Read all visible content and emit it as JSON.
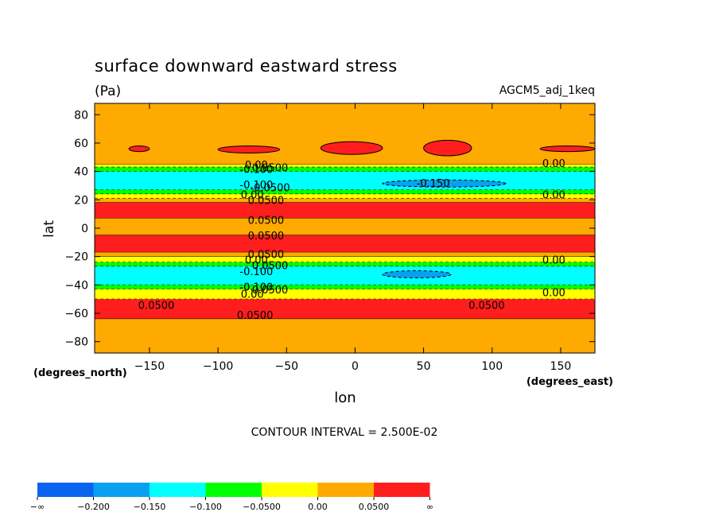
{
  "chart_data": {
    "type": "heatmap",
    "title": "surface downward eastward stress",
    "units": "(Pa)",
    "dataset": "AGCM5_adj_1keq",
    "xlabel": "lon",
    "ylabel": "lat",
    "x_units": "(degrees_east)",
    "y_units": "(degrees_north)",
    "xlim": [
      -190,
      175
    ],
    "ylim": [
      -88,
      88
    ],
    "x_ticks": [
      {
        "value": -150,
        "label": "−150"
      },
      {
        "value": -100,
        "label": "−100"
      },
      {
        "value": -50,
        "label": "−50"
      },
      {
        "value": 0,
        "label": "0"
      },
      {
        "value": 50,
        "label": "50"
      },
      {
        "value": 100,
        "label": "100"
      },
      {
        "value": 150,
        "label": "150"
      }
    ],
    "y_ticks": [
      {
        "value": 80,
        "label": "80"
      },
      {
        "value": 60,
        "label": "60"
      },
      {
        "value": 40,
        "label": "40"
      },
      {
        "value": 20,
        "label": "20"
      },
      {
        "value": 0,
        "label": "0"
      },
      {
        "value": -20,
        "label": "−20"
      },
      {
        "value": -40,
        "label": "−40"
      },
      {
        "value": -60,
        "label": "−60"
      },
      {
        "value": -80,
        "label": "−80"
      }
    ],
    "contour_interval_text": "CONTOUR INTERVAL = 2.500E-02",
    "bands": [
      {
        "lat_from": 88,
        "lat_to": 45,
        "value": 0.02
      },
      {
        "lat_from": 45,
        "lat_to": 43,
        "value": -0.02
      },
      {
        "lat_from": 43,
        "lat_to": 40,
        "value": -0.07
      },
      {
        "lat_from": 40,
        "lat_to": 27,
        "value": -0.12
      },
      {
        "lat_from": 27,
        "lat_to": 24,
        "value": -0.07
      },
      {
        "lat_from": 24,
        "lat_to": 21,
        "value": -0.02
      },
      {
        "lat_from": 21,
        "lat_to": 18,
        "value": 0.02
      },
      {
        "lat_from": 18,
        "lat_to": 7,
        "value": 0.06
      },
      {
        "lat_from": 7,
        "lat_to": -5,
        "value": 0.02
      },
      {
        "lat_from": -5,
        "lat_to": -17,
        "value": 0.06
      },
      {
        "lat_from": -17,
        "lat_to": -20,
        "value": 0.02
      },
      {
        "lat_from": -20,
        "lat_to": -24,
        "value": -0.02
      },
      {
        "lat_from": -24,
        "lat_to": -27,
        "value": -0.07
      },
      {
        "lat_from": -27,
        "lat_to": -40,
        "value": -0.12
      },
      {
        "lat_from": -40,
        "lat_to": -43,
        "value": -0.07
      },
      {
        "lat_from": -43,
        "lat_to": -50,
        "value": -0.02
      },
      {
        "lat_from": -50,
        "lat_to": -64,
        "value": 0.06
      },
      {
        "lat_from": -64,
        "lat_to": -88,
        "value": 0.02
      }
    ],
    "patches": [
      {
        "lon_from": -165,
        "lon_to": -150,
        "lat_from": 58,
        "lat_to": 54,
        "value": 0.06
      },
      {
        "lon_from": -100,
        "lon_to": -55,
        "lat_from": 58,
        "lat_to": 53,
        "value": 0.06
      },
      {
        "lon_from": -25,
        "lon_to": 20,
        "lat_from": 61,
        "lat_to": 52,
        "value": 0.06
      },
      {
        "lon_from": 50,
        "lon_to": 85,
        "lat_from": 62,
        "lat_to": 51,
        "value": 0.06
      },
      {
        "lon_from": 135,
        "lon_to": 175,
        "lat_from": 58,
        "lat_to": 54,
        "value": 0.06
      },
      {
        "lon_from": 20,
        "lon_to": 110,
        "lat_from": 34,
        "lat_to": 29,
        "value": -0.16
      },
      {
        "lon_from": 20,
        "lon_to": 70,
        "lat_from": -30,
        "lat_to": -35,
        "value": -0.16
      }
    ],
    "contour_labels": [
      {
        "lon": -72,
        "lat": 44,
        "label": "0.00"
      },
      {
        "lon": -72,
        "lat": 41,
        "label": "-0.100"
      },
      {
        "lon": -62,
        "lat": 42,
        "label": "0.0500"
      },
      {
        "lon": -72,
        "lat": 30,
        "label": "-0.100"
      },
      {
        "lon": -62,
        "lat": 28,
        "label": "-0.0500"
      },
      {
        "lon": -75,
        "lat": 23,
        "label": "0.00"
      },
      {
        "lon": -65,
        "lat": 19,
        "label": "0.0500"
      },
      {
        "lon": -65,
        "lat": 5,
        "label": "0.0500"
      },
      {
        "lon": -65,
        "lat": -6,
        "label": "0.0500"
      },
      {
        "lon": -65,
        "lat": -19,
        "label": "0.0500"
      },
      {
        "lon": -72,
        "lat": -23,
        "label": "0.00"
      },
      {
        "lon": -62,
        "lat": -27,
        "label": "0.0500"
      },
      {
        "lon": -72,
        "lat": -31,
        "label": "-0.100"
      },
      {
        "lon": -72,
        "lat": -42,
        "label": "-0.100"
      },
      {
        "lon": -62,
        "lat": -44,
        "label": "0.0500"
      },
      {
        "lon": -75,
        "lat": -47,
        "label": "0.00"
      },
      {
        "lon": -145,
        "lat": -55,
        "label": "0.0500"
      },
      {
        "lon": -73,
        "lat": -62,
        "label": "0.0500"
      },
      {
        "lon": 57,
        "lat": 31,
        "label": "-0.150"
      },
      {
        "lon": 96,
        "lat": -55,
        "label": "0.0500"
      },
      {
        "lon": 145,
        "lat": 45,
        "label": "0.00"
      },
      {
        "lon": 145,
        "lat": 23,
        "label": "0.00"
      },
      {
        "lon": 145,
        "lat": -23,
        "label": "0.00"
      },
      {
        "lon": 145,
        "lat": -46,
        "label": "0.00"
      }
    ],
    "colorbar": {
      "colors": [
        "#0a64f0",
        "#0aa0f0",
        "#00ffff",
        "#00ff00",
        "#ffff00",
        "#ffaa00",
        "#ff1e1e"
      ],
      "thresholds": [
        -0.2,
        -0.15,
        -0.1,
        -0.05,
        0.0,
        0.05
      ],
      "labels": [
        "−∞",
        "−0.200",
        "−0.150",
        "−0.100",
        "−0.0500",
        "0.00",
        "0.0500",
        "∞"
      ]
    }
  }
}
